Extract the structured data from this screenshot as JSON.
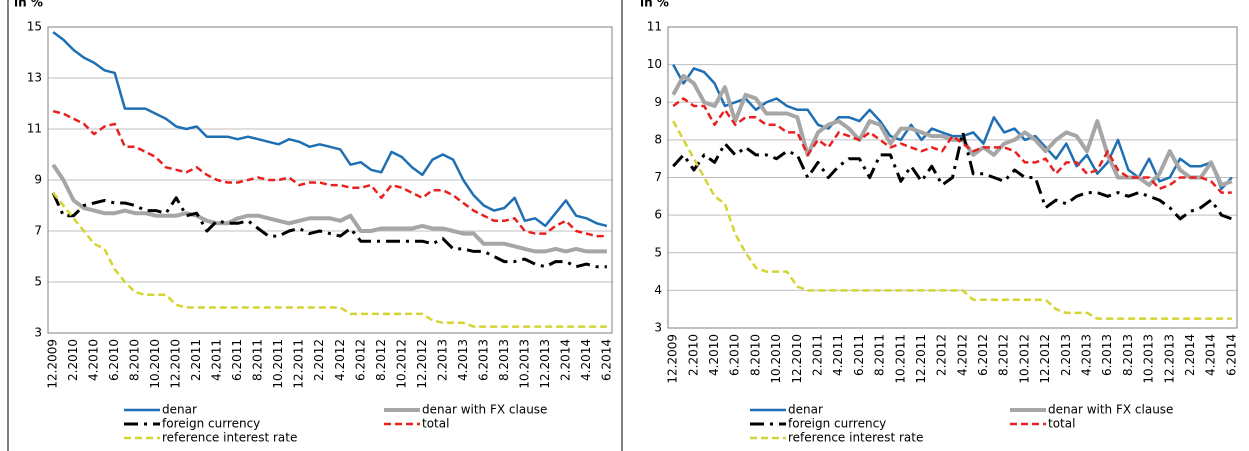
{
  "chart_data": [
    {
      "type": "line",
      "ylabel": "in %",
      "ylim": [
        3,
        15
      ],
      "yticks": [
        3,
        5,
        7,
        9,
        11,
        13,
        15
      ],
      "grid": true,
      "categories": [
        "12.2009",
        null,
        "2.2010",
        null,
        "4.2010",
        null,
        "6.2010",
        null,
        "8.2010",
        null,
        "10.2010",
        null,
        "12.2010",
        null,
        "2.2011",
        null,
        "4.2011",
        null,
        "6.2011",
        null,
        "8.2011",
        null,
        "10.2011",
        null,
        "12.2011",
        null,
        "2.2012",
        null,
        "4.2012",
        null,
        "6.2012",
        null,
        "8.2012",
        null,
        "10.2012",
        null,
        "12.2012",
        null,
        "2.2013",
        null,
        "4.2013",
        null,
        "6.2013",
        null,
        "8.2013",
        null,
        "10.2013",
        null,
        "12.2013",
        null,
        "2.2014",
        null,
        "4.2014",
        null,
        "6.2014"
      ],
      "series": [
        {
          "name": "denar",
          "color": "#1f6fb4",
          "style": "solid",
          "values": [
            14.8,
            14.5,
            14.1,
            13.8,
            13.6,
            13.3,
            13.2,
            11.8,
            11.8,
            11.8,
            11.6,
            11.4,
            11.1,
            11.0,
            11.1,
            10.7,
            10.7,
            10.7,
            10.6,
            10.7,
            10.6,
            10.5,
            10.4,
            10.6,
            10.5,
            10.3,
            10.4,
            10.3,
            10.2,
            9.6,
            9.7,
            9.4,
            9.3,
            10.1,
            9.9,
            9.5,
            9.2,
            9.8,
            10.0,
            9.8,
            9.0,
            8.4,
            8.0,
            7.8,
            7.9,
            8.3,
            7.4,
            7.5,
            7.2,
            7.7,
            8.2,
            7.6,
            7.5,
            7.3,
            7.2
          ]
        },
        {
          "name": "denar with FX clause",
          "color": "#a6a6a6",
          "style": "thick",
          "values": [
            9.6,
            9.0,
            8.2,
            7.9,
            7.8,
            7.7,
            7.7,
            7.8,
            7.7,
            7.7,
            7.6,
            7.6,
            7.6,
            7.7,
            7.6,
            7.4,
            7.3,
            7.3,
            7.5,
            7.6,
            7.6,
            7.5,
            7.4,
            7.3,
            7.4,
            7.5,
            7.5,
            7.5,
            7.4,
            7.6,
            7.0,
            7.0,
            7.1,
            7.1,
            7.1,
            7.1,
            7.2,
            7.1,
            7.1,
            7.0,
            6.9,
            6.9,
            6.5,
            6.5,
            6.5,
            6.4,
            6.3,
            6.2,
            6.2,
            6.3,
            6.2,
            6.3,
            6.2,
            6.2,
            6.2
          ]
        },
        {
          "name": "foreign currency",
          "color": "#000000",
          "style": "dashdot",
          "values": [
            8.5,
            7.6,
            7.6,
            8.0,
            8.1,
            8.2,
            8.1,
            8.1,
            8.0,
            7.8,
            7.8,
            7.7,
            8.3,
            7.6,
            7.7,
            7.0,
            7.4,
            7.3,
            7.3,
            7.4,
            7.1,
            6.8,
            6.8,
            7.0,
            7.1,
            6.9,
            7.0,
            6.9,
            6.8,
            7.1,
            6.6,
            6.6,
            6.6,
            6.6,
            6.6,
            6.6,
            6.6,
            6.5,
            6.7,
            6.3,
            6.3,
            6.2,
            6.2,
            6.0,
            5.8,
            5.8,
            5.9,
            5.7,
            5.6,
            5.8,
            5.8,
            5.6,
            5.7,
            5.6,
            5.6
          ]
        },
        {
          "name": "total",
          "color": "#e8201f",
          "style": "dashed",
          "values": [
            11.7,
            11.6,
            11.4,
            11.2,
            10.8,
            11.1,
            11.2,
            10.3,
            10.3,
            10.1,
            9.9,
            9.5,
            9.4,
            9.3,
            9.5,
            9.2,
            9.0,
            8.9,
            8.9,
            9.0,
            9.1,
            9.0,
            9.0,
            9.1,
            8.8,
            8.9,
            8.9,
            8.8,
            8.8,
            8.7,
            8.7,
            8.8,
            8.3,
            8.8,
            8.7,
            8.5,
            8.3,
            8.6,
            8.6,
            8.4,
            8.1,
            7.8,
            7.6,
            7.4,
            7.4,
            7.5,
            7.0,
            6.9,
            6.9,
            7.2,
            7.4,
            7.0,
            6.9,
            6.8,
            6.8
          ]
        },
        {
          "name": "reference interest rate",
          "color": "#d4d433",
          "style": "dashed",
          "values": [
            8.5,
            8.0,
            7.5,
            7.0,
            6.5,
            6.3,
            5.5,
            5.0,
            4.6,
            4.5,
            4.5,
            4.5,
            4.1,
            4.0,
            4.0,
            4.0,
            4.0,
            4.0,
            4.0,
            4.0,
            4.0,
            4.0,
            4.0,
            4.0,
            4.0,
            4.0,
            4.0,
            4.0,
            4.0,
            3.75,
            3.75,
            3.75,
            3.75,
            3.75,
            3.75,
            3.75,
            3.75,
            3.5,
            3.4,
            3.4,
            3.4,
            3.25,
            3.25,
            3.25,
            3.25,
            3.25,
            3.25,
            3.25,
            3.25,
            3.25,
            3.25,
            3.25,
            3.25,
            3.25,
            3.25
          ]
        }
      ]
    },
    {
      "type": "line",
      "ylabel": "in %",
      "ylim": [
        3,
        11
      ],
      "yticks": [
        3,
        4,
        5,
        6,
        7,
        8,
        9,
        10,
        11
      ],
      "grid": true,
      "categories": [
        "12.2009",
        null,
        "2.2010",
        null,
        "4.2010",
        null,
        "6.2010",
        null,
        "8.2010",
        null,
        "10.2010",
        null,
        "12.2010",
        null,
        "2.2011",
        null,
        "4.2011",
        null,
        "6.2011",
        null,
        "8.2011",
        null,
        "10.2011",
        null,
        "12.2011",
        null,
        "2.2012",
        null,
        "4.2012",
        null,
        "6.2012",
        null,
        "8.2012",
        null,
        "10.2012",
        null,
        "12.2012",
        null,
        "2.2013",
        null,
        "4.2013",
        null,
        "6.2013",
        null,
        "8.2013",
        null,
        "10.2013",
        null,
        "12.2013",
        null,
        "2.2014",
        null,
        "4.2014",
        null,
        "6.2014"
      ],
      "series": [
        {
          "name": "denar",
          "color": "#1f6fb4",
          "style": "solid",
          "values": [
            10.0,
            9.5,
            9.9,
            9.8,
            9.5,
            8.9,
            9.0,
            9.1,
            8.8,
            9.0,
            9.1,
            8.9,
            8.8,
            8.8,
            8.4,
            8.3,
            8.6,
            8.6,
            8.5,
            8.8,
            8.5,
            8.1,
            8.0,
            8.4,
            8.0,
            8.3,
            8.2,
            8.1,
            8.1,
            8.2,
            7.9,
            8.6,
            8.2,
            8.3,
            8.0,
            8.1,
            7.8,
            7.5,
            7.9,
            7.3,
            7.6,
            7.1,
            7.4,
            8.0,
            7.2,
            7.0,
            7.5,
            6.9,
            7.0,
            7.5,
            7.3,
            7.3,
            7.4,
            6.7,
            7.0
          ]
        },
        {
          "name": "denar with FX clause",
          "color": "#a6a6a6",
          "style": "thick",
          "values": [
            9.2,
            9.7,
            9.5,
            9.0,
            8.9,
            9.4,
            8.5,
            9.2,
            9.1,
            8.7,
            8.7,
            8.7,
            8.6,
            7.6,
            8.2,
            8.4,
            8.5,
            8.3,
            8.0,
            8.5,
            8.4,
            7.9,
            8.3,
            8.3,
            8.2,
            8.1,
            8.1,
            8.0,
            8.0,
            7.6,
            7.8,
            7.6,
            7.9,
            8.0,
            8.2,
            8.0,
            7.7,
            8.0,
            8.2,
            8.1,
            7.7,
            8.5,
            7.6,
            7.0,
            7.0,
            7.0,
            6.8,
            7.1,
            7.7,
            7.2,
            7.0,
            7.0,
            7.4,
            6.8,
            6.9
          ]
        },
        {
          "name": "foreign currency",
          "color": "#000000",
          "style": "dashdot",
          "values": [
            7.3,
            7.6,
            7.2,
            7.6,
            7.4,
            7.9,
            7.6,
            7.8,
            7.6,
            7.6,
            7.5,
            7.7,
            7.6,
            7.0,
            7.4,
            7.0,
            7.3,
            7.5,
            7.5,
            7.0,
            7.6,
            7.6,
            6.9,
            7.3,
            6.9,
            7.3,
            6.8,
            7.0,
            8.2,
            7.1,
            7.1,
            7.0,
            6.9,
            7.2,
            7.0,
            7.0,
            6.2,
            6.4,
            6.3,
            6.5,
            6.6,
            6.6,
            6.5,
            6.6,
            6.5,
            6.6,
            6.5,
            6.4,
            6.2,
            5.9,
            6.1,
            6.2,
            6.4,
            6.0,
            5.9
          ]
        },
        {
          "name": "total",
          "color": "#e8201f",
          "style": "dashed",
          "values": [
            8.9,
            9.1,
            8.9,
            8.9,
            8.4,
            8.8,
            8.4,
            8.6,
            8.6,
            8.4,
            8.4,
            8.2,
            8.2,
            7.6,
            8.0,
            7.8,
            8.2,
            8.1,
            8.0,
            8.2,
            8.0,
            7.8,
            7.9,
            7.8,
            7.7,
            7.8,
            7.7,
            8.1,
            7.9,
            7.7,
            7.8,
            7.8,
            7.8,
            7.7,
            7.4,
            7.4,
            7.5,
            7.1,
            7.4,
            7.4,
            7.1,
            7.2,
            7.7,
            7.2,
            7.0,
            7.0,
            7.0,
            6.7,
            6.8,
            7.0,
            7.0,
            7.0,
            6.9,
            6.6,
            6.6
          ]
        },
        {
          "name": "reference interest rate",
          "color": "#d4d433",
          "style": "dashed",
          "values": [
            8.5,
            8.0,
            7.5,
            7.0,
            6.5,
            6.3,
            5.5,
            5.0,
            4.6,
            4.5,
            4.5,
            4.5,
            4.1,
            4.0,
            4.0,
            4.0,
            4.0,
            4.0,
            4.0,
            4.0,
            4.0,
            4.0,
            4.0,
            4.0,
            4.0,
            4.0,
            4.0,
            4.0,
            4.0,
            3.75,
            3.75,
            3.75,
            3.75,
            3.75,
            3.75,
            3.75,
            3.75,
            3.5,
            3.4,
            3.4,
            3.4,
            3.25,
            3.25,
            3.25,
            3.25,
            3.25,
            3.25,
            3.25,
            3.25,
            3.25,
            3.25,
            3.25,
            3.25,
            3.25,
            3.25
          ]
        }
      ]
    }
  ]
}
